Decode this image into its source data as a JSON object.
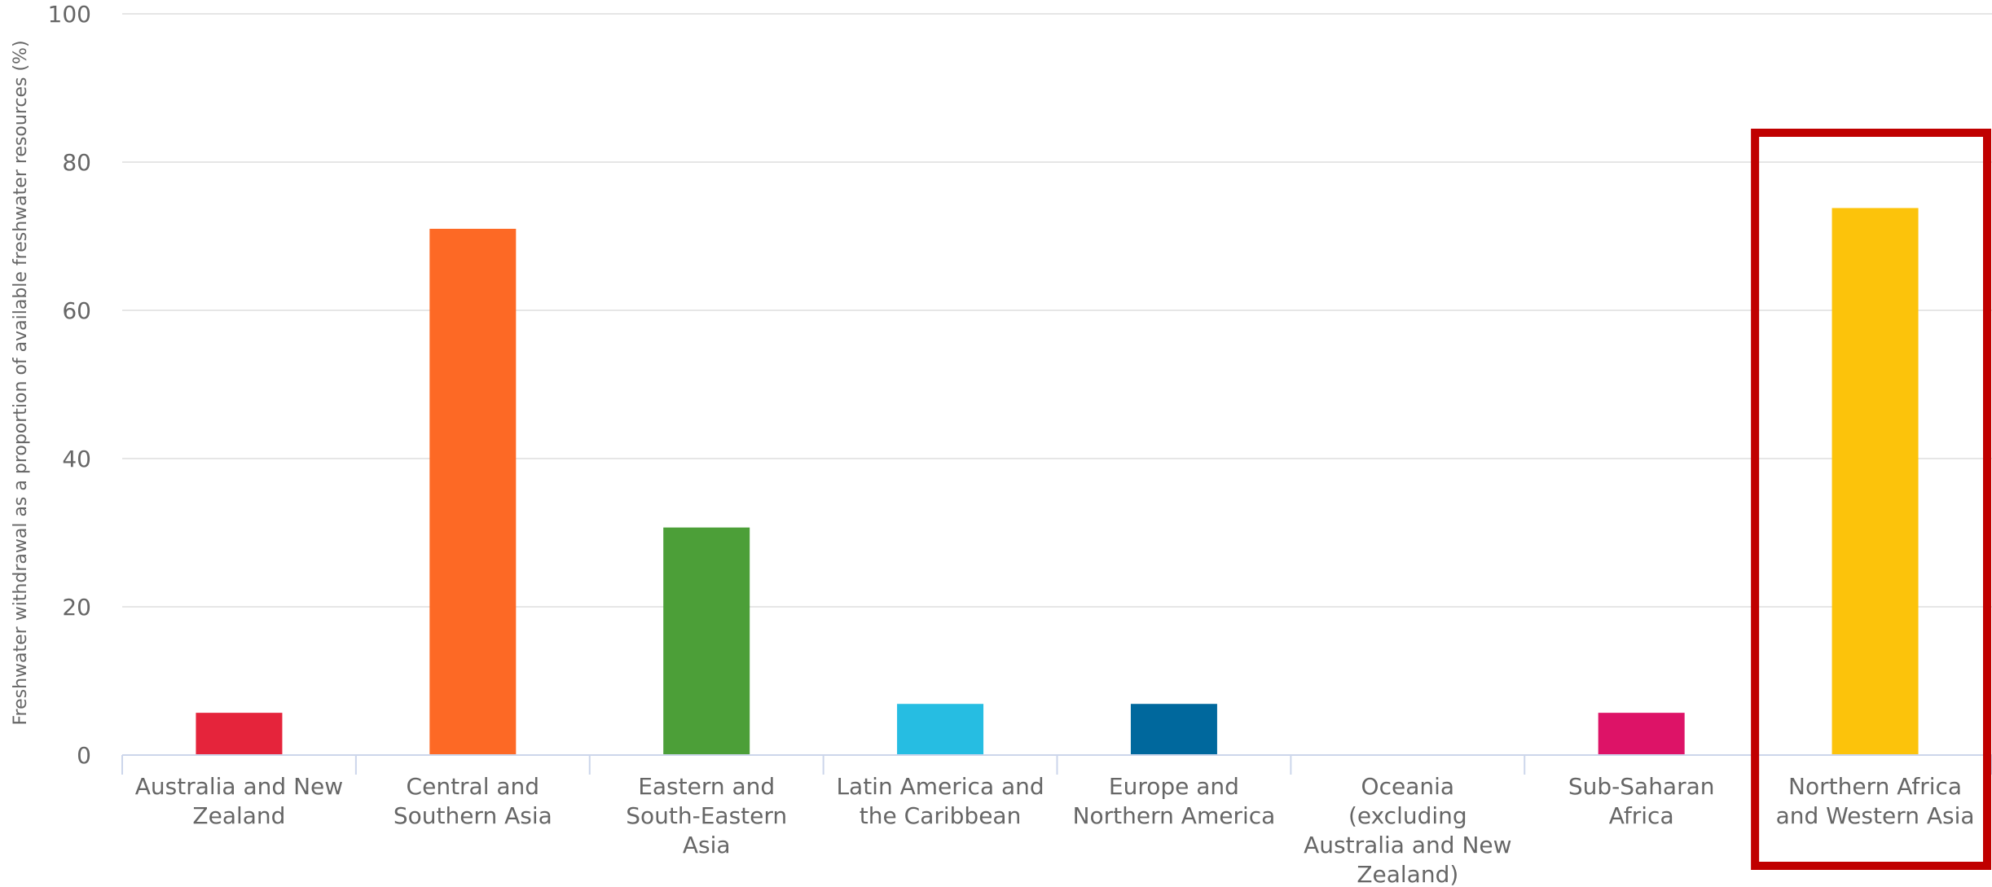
{
  "chart_data": {
    "type": "bar",
    "ylabel": "Freshwater withdrawal as a proportion of available freshwater resources (%)",
    "ylim": [
      0,
      100
    ],
    "yticks": [
      0,
      20,
      40,
      60,
      80,
      100
    ],
    "grid": true,
    "categories": [
      "Australia and New Zealand",
      "Central and Southern Asia",
      "Eastern and South-Eastern Asia",
      "Latin America and the Caribbean",
      "Europe and Northern America",
      "Oceania (excluding Australia and New Zealand)",
      "Sub-Saharan Africa",
      "Northern Africa and Western Asia"
    ],
    "category_lines": [
      [
        "Australia and New",
        "Zealand"
      ],
      [
        "Central and",
        "Southern Asia"
      ],
      [
        "Eastern and",
        "South-Eastern",
        "Asia"
      ],
      [
        "Latin America and",
        "the Caribbean"
      ],
      [
        "Europe and",
        "Northern America"
      ],
      [
        "Oceania",
        "(excluding",
        "Australia and New",
        "Zealand)"
      ],
      [
        "Sub-Saharan",
        "Africa"
      ],
      [
        "Northern Africa",
        "and Western Asia"
      ]
    ],
    "values": [
      5.7,
      71.0,
      30.7,
      6.9,
      6.9,
      0.0,
      5.7,
      73.8
    ],
    "colors": [
      "#E5243B",
      "#FD6925",
      "#4C9F38",
      "#26BDE2",
      "#00689D",
      "#56C02B",
      "#DD1367",
      "#FCC30B"
    ],
    "highlight": {
      "category_index": 7,
      "color": "#C00000"
    }
  }
}
